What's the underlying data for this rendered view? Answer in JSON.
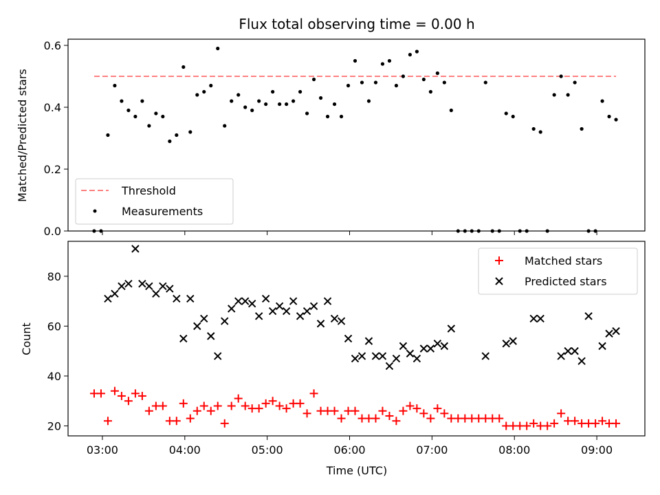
{
  "colors": {
    "threshold": "#ff7f7f",
    "measurements": "#000000",
    "matched": "#ff0000",
    "predicted": "#000000"
  },
  "chart_data": [
    {
      "type": "scatter",
      "title": "Flux total observing time = 0.00 h",
      "xlabel": "",
      "ylabel": "Matched/Predicted stars",
      "xlim": [
        "02:35",
        "09:35"
      ],
      "ylim": [
        0,
        0.62
      ],
      "yticks": [
        "0.0",
        "0.2",
        "0.4",
        "0.6"
      ],
      "legend_position": "lower-left",
      "threshold": {
        "name": "Threshold",
        "value": 0.5,
        "x_range": [
          "02:54",
          "09:14"
        ]
      },
      "measurements": {
        "name": "Measurements",
        "x": [
          "02:54",
          "02:59",
          "03:04",
          "03:09",
          "03:14",
          "03:19",
          "03:24",
          "03:29",
          "03:34",
          "03:39",
          "03:44",
          "03:49",
          "03:54",
          "03:59",
          "04:04",
          "04:09",
          "04:14",
          "04:19",
          "04:24",
          "04:29",
          "04:34",
          "04:39",
          "04:44",
          "04:49",
          "04:54",
          "04:59",
          "05:04",
          "05:09",
          "05:14",
          "05:19",
          "05:24",
          "05:29",
          "05:34",
          "05:39",
          "05:44",
          "05:49",
          "05:54",
          "05:59",
          "06:04",
          "06:09",
          "06:14",
          "06:19",
          "06:24",
          "06:29",
          "06:34",
          "06:39",
          "06:44",
          "06:49",
          "06:54",
          "06:59",
          "07:04",
          "07:09",
          "07:14",
          "07:19",
          "07:24",
          "07:29",
          "07:34",
          "07:39",
          "07:44",
          "07:49",
          "07:54",
          "07:59",
          "08:04",
          "08:09",
          "08:14",
          "08:19",
          "08:24",
          "08:29",
          "08:34",
          "08:39",
          "08:44",
          "08:49",
          "08:54",
          "08:59",
          "09:04",
          "09:09",
          "09:14"
        ],
        "y": [
          0.0,
          0.0,
          0.31,
          0.47,
          0.42,
          0.39,
          0.37,
          0.42,
          0.34,
          0.38,
          0.37,
          0.29,
          0.31,
          0.53,
          0.32,
          0.44,
          0.45,
          0.47,
          0.59,
          0.34,
          0.42,
          0.44,
          0.4,
          0.39,
          0.42,
          0.41,
          0.45,
          0.41,
          0.41,
          0.42,
          0.45,
          0.38,
          0.49,
          0.43,
          0.37,
          0.41,
          0.37,
          0.47,
          0.55,
          0.48,
          0.42,
          0.48,
          0.54,
          0.55,
          0.47,
          0.5,
          0.57,
          0.58,
          0.49,
          0.45,
          0.51,
          0.48,
          0.39,
          0.0,
          0.0,
          0.0,
          0.0,
          0.48,
          0.0,
          0.0,
          0.38,
          0.37,
          0.0,
          0.0,
          0.33,
          0.32,
          0.0,
          0.44,
          0.5,
          0.44,
          0.48,
          0.33,
          0.0,
          0.0,
          0.42,
          0.37,
          0.36
        ]
      }
    },
    {
      "type": "scatter",
      "title": "",
      "xlabel": "Time (UTC)",
      "ylabel": "Count",
      "xlim": [
        "02:35",
        "09:35"
      ],
      "ylim": [
        16,
        94
      ],
      "yticks": [
        "20",
        "40",
        "60",
        "80"
      ],
      "xticks": [
        "03:00",
        "04:00",
        "05:00",
        "06:00",
        "07:00",
        "08:00",
        "09:00"
      ],
      "legend_position": "upper-right",
      "series": [
        {
          "name": "Matched stars",
          "marker": "+",
          "x": [
            "02:54",
            "02:59",
            "03:04",
            "03:09",
            "03:14",
            "03:19",
            "03:24",
            "03:29",
            "03:34",
            "03:39",
            "03:44",
            "03:49",
            "03:54",
            "03:59",
            "04:04",
            "04:09",
            "04:14",
            "04:19",
            "04:24",
            "04:29",
            "04:34",
            "04:39",
            "04:44",
            "04:49",
            "04:54",
            "04:59",
            "05:04",
            "05:09",
            "05:14",
            "05:19",
            "05:24",
            "05:29",
            "05:34",
            "05:39",
            "05:44",
            "05:49",
            "05:54",
            "05:59",
            "06:04",
            "06:09",
            "06:14",
            "06:19",
            "06:24",
            "06:29",
            "06:34",
            "06:39",
            "06:44",
            "06:49",
            "06:54",
            "06:59",
            "07:04",
            "07:09",
            "07:14",
            "07:19",
            "07:24",
            "07:29",
            "07:34",
            "07:39",
            "07:44",
            "07:49",
            "07:54",
            "07:59",
            "08:04",
            "08:09",
            "08:14",
            "08:19",
            "08:24",
            "08:29",
            "08:34",
            "08:39",
            "08:44",
            "08:49",
            "08:54",
            "08:59",
            "09:04",
            "09:09",
            "09:14"
          ],
          "y": [
            33,
            33,
            22,
            34,
            32,
            30,
            33,
            32,
            26,
            28,
            28,
            22,
            22,
            29,
            23,
            26,
            28,
            26,
            28,
            21,
            28,
            31,
            28,
            27,
            27,
            29,
            30,
            28,
            27,
            29,
            29,
            25,
            33,
            26,
            26,
            26,
            23,
            26,
            26,
            23,
            23,
            23,
            26,
            24,
            22,
            26,
            28,
            27,
            25,
            23,
            27,
            25,
            23,
            23,
            23,
            23,
            23,
            23,
            23,
            23,
            20,
            20,
            20,
            20,
            21,
            20,
            20,
            21,
            25,
            22,
            22,
            21,
            21,
            21,
            22,
            21,
            21
          ]
        },
        {
          "name": "Predicted stars",
          "marker": "x",
          "x": [
            "03:04",
            "03:09",
            "03:14",
            "03:19",
            "03:24",
            "03:29",
            "03:34",
            "03:39",
            "03:44",
            "03:49",
            "03:54",
            "03:59",
            "04:04",
            "04:09",
            "04:14",
            "04:19",
            "04:24",
            "04:29",
            "04:34",
            "04:39",
            "04:44",
            "04:49",
            "04:54",
            "04:59",
            "05:04",
            "05:09",
            "05:14",
            "05:19",
            "05:24",
            "05:29",
            "05:34",
            "05:39",
            "05:44",
            "05:49",
            "05:54",
            "05:59",
            "06:04",
            "06:09",
            "06:14",
            "06:19",
            "06:24",
            "06:29",
            "06:34",
            "06:39",
            "06:44",
            "06:49",
            "06:54",
            "06:59",
            "07:04",
            "07:09",
            "07:14",
            "07:39",
            "07:54",
            "07:59",
            "08:14",
            "08:19",
            "08:34",
            "08:39",
            "08:44",
            "08:49",
            "08:54",
            "09:04",
            "09:09",
            "09:14"
          ],
          "y": [
            71,
            73,
            76,
            77,
            91,
            77,
            76,
            73,
            76,
            75,
            71,
            55,
            71,
            60,
            63,
            56,
            48,
            62,
            67,
            70,
            70,
            69,
            64,
            71,
            66,
            68,
            66,
            70,
            64,
            66,
            68,
            61,
            70,
            63,
            62,
            55,
            47,
            48,
            54,
            48,
            48,
            44,
            47,
            52,
            49,
            47,
            51,
            51,
            53,
            52,
            59,
            48,
            53,
            54,
            63,
            63,
            48,
            50,
            50,
            46,
            64,
            52,
            57,
            58
          ]
        }
      ]
    }
  ]
}
